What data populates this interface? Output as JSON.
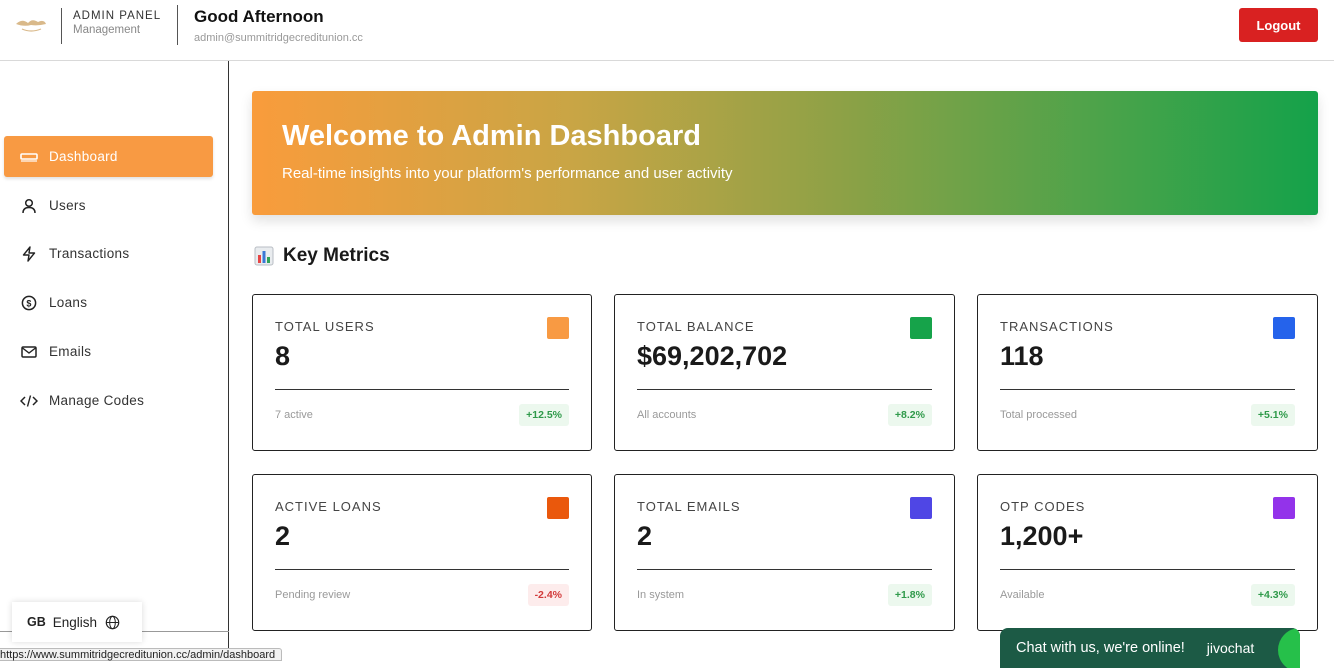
{
  "header": {
    "brand_title": "ADMIN PANEL",
    "brand_sub": "Management",
    "greeting": "Good Afternoon",
    "email": "admin@summitridgecreditunion.cc",
    "logout_label": "Logout"
  },
  "sidebar": {
    "items": [
      {
        "label": "Dashboard",
        "icon": "dashboard-icon",
        "active": true
      },
      {
        "label": "Users",
        "icon": "user-icon",
        "active": false
      },
      {
        "label": "Transactions",
        "icon": "bolt-icon",
        "active": false
      },
      {
        "label": "Loans",
        "icon": "dollar-circle-icon",
        "active": false
      },
      {
        "label": "Emails",
        "icon": "mail-icon",
        "active": false
      },
      {
        "label": "Manage Codes",
        "icon": "code-icon",
        "active": false
      }
    ],
    "language": {
      "code": "GB",
      "label": "English",
      "icon": "globe-icon"
    }
  },
  "banner": {
    "title": "Welcome to Admin Dashboard",
    "subtitle": "Real-time insights into your platform's performance and user activity"
  },
  "metrics": {
    "title": "Key Metrics",
    "icon": "bar-chart-icon",
    "cards": [
      {
        "label": "TOTAL USERS",
        "value": "8",
        "foot": "7 active",
        "badge": "+12.5%",
        "color": "#f89a43",
        "trend": "up"
      },
      {
        "label": "TOTAL BALANCE",
        "value": "$69,202,702",
        "foot": "All accounts",
        "badge": "+8.2%",
        "color": "#16a34a",
        "trend": "up"
      },
      {
        "label": "TRANSACTIONS",
        "value": "118",
        "foot": "Total processed",
        "badge": "+5.1%",
        "color": "#2563eb",
        "trend": "up"
      },
      {
        "label": "ACTIVE LOANS",
        "value": "2",
        "foot": "Pending review",
        "badge": "-2.4%",
        "color": "#ea580c",
        "trend": "down"
      },
      {
        "label": "TOTAL EMAILS",
        "value": "2",
        "foot": "In system",
        "badge": "+1.8%",
        "color": "#4f46e5",
        "trend": "up"
      },
      {
        "label": "OTP CODES",
        "value": "1,200+",
        "foot": "Available",
        "badge": "+4.3%",
        "color": "#9333ea",
        "trend": "up"
      }
    ]
  },
  "chat": {
    "label": "Chat with us, we're online!",
    "brand": "jivochat"
  },
  "status_url": "https://www.summitridgecreditunion.cc/admin/dashboard",
  "colors": {
    "accent": "#f89a43",
    "logout": "#d92121",
    "positive": "#2f9a4a",
    "negative": "#d23b3b"
  }
}
